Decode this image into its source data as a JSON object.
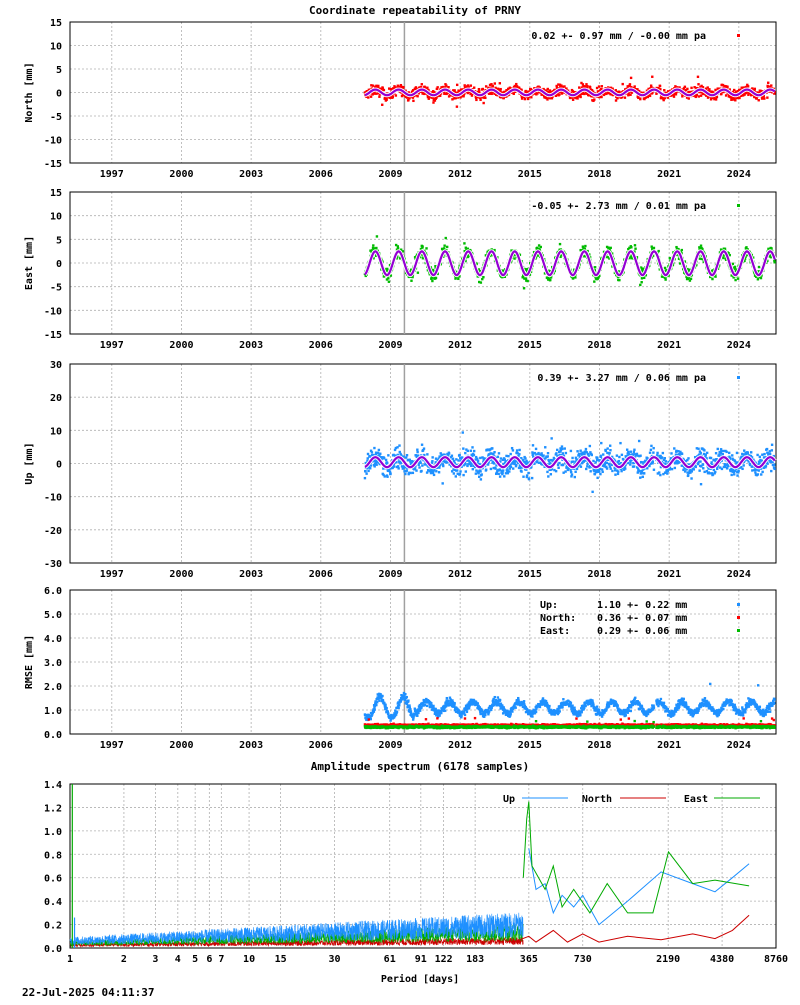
{
  "page": {
    "title": "Coordinate repeatability of PRNY",
    "footer_timestamp": "22-Jul-2025 04:11:37"
  },
  "colors": {
    "north": "#ff0000",
    "east": "#00bb00",
    "up": "#1e90ff",
    "model": "#9400d3",
    "grid": "#b0b0b0",
    "vline": "#a0a0a0",
    "spec_up": "#1e90ff",
    "spec_north": "#cc0000",
    "spec_east": "#00aa00"
  },
  "chart_data": [
    {
      "id": "north",
      "type": "scatter",
      "ylabel": "North [mm]",
      "ylim": [
        -15,
        15
      ],
      "yticks": [
        -15,
        -10,
        -5,
        0,
        5,
        10,
        15
      ],
      "xlim": [
        1995.2,
        2025.6
      ],
      "xticks": [
        1997,
        2000,
        2003,
        2006,
        2009,
        2012,
        2015,
        2018,
        2021,
        2024
      ],
      "annotation": "0.02 +- 0.97 mm / -0.00 mm pa",
      "data_range": [
        2007.9,
        2025.55
      ],
      "gap": [
        2020.35,
        2020.45
      ],
      "scatter_sigma": 0.97,
      "seasonal_amplitude": 0.6,
      "mean": 0.02,
      "vline_x": 2009.6
    },
    {
      "id": "east",
      "type": "scatter",
      "ylabel": "East [mm]",
      "ylim": [
        -15,
        15
      ],
      "yticks": [
        -15,
        -10,
        -5,
        0,
        5,
        10,
        15
      ],
      "xlim": [
        1995.2,
        2025.6
      ],
      "xticks": [
        1997,
        2000,
        2003,
        2006,
        2009,
        2012,
        2015,
        2018,
        2021,
        2024
      ],
      "annotation": "-0.05 +- 2.73 mm /  0.01 mm pa",
      "data_range": [
        2007.9,
        2025.55
      ],
      "gap": [
        2020.35,
        2020.45
      ],
      "scatter_sigma": 1.2,
      "seasonal_amplitude": 2.5,
      "mean": -0.05,
      "vline_x": 2009.6
    },
    {
      "id": "up",
      "type": "scatter",
      "ylabel": "Up [mm]",
      "ylim": [
        -30,
        30
      ],
      "yticks": [
        -30,
        -20,
        -10,
        0,
        10,
        20,
        30
      ],
      "xlim": [
        1995.2,
        2025.6
      ],
      "xticks": [
        1997,
        2000,
        2003,
        2006,
        2009,
        2012,
        2015,
        2018,
        2021,
        2024
      ],
      "annotation": "0.39 +- 3.27 mm /  0.06 mm pa",
      "data_range": [
        2007.9,
        2025.55
      ],
      "gap": [
        2020.35,
        2020.45
      ],
      "scatter_sigma": 3.0,
      "seasonal_amplitude": 1.5,
      "mean": 0.39,
      "vline_x": 2009.6
    },
    {
      "id": "rmse",
      "type": "scatter",
      "ylabel": "RMSE [mm]",
      "ylim": [
        0,
        6
      ],
      "yticks": [
        "0.0",
        "1.0",
        "2.0",
        "3.0",
        "4.0",
        "5.0",
        "6.0"
      ],
      "xlim": [
        1995.2,
        2025.6
      ],
      "xticks": [
        1997,
        2000,
        2003,
        2006,
        2009,
        2012,
        2015,
        2018,
        2021,
        2024
      ],
      "legend": [
        {
          "label": "Up:",
          "value": "1.10 +- 0.22 mm",
          "color_key": "up"
        },
        {
          "label": "North:",
          "value": "0.36 +- 0.07 mm",
          "color_key": "north"
        },
        {
          "label": "East:",
          "value": "0.29 +- 0.06 mm",
          "color_key": "east"
        }
      ],
      "series_means": {
        "up": 1.1,
        "north": 0.36,
        "east": 0.29
      },
      "series_sigmas": {
        "up": 0.22,
        "north": 0.07,
        "east": 0.06
      },
      "data_range": [
        2007.9,
        2025.55
      ],
      "gap": [
        2020.35,
        2020.45
      ],
      "vline_x": 2009.6
    },
    {
      "id": "spectrum",
      "type": "line",
      "title": "Amplitude spectrum (6178 samples)",
      "xlabel": "Period [days]",
      "xscale": "log",
      "xlim": [
        1,
        8760
      ],
      "ylim": [
        0,
        1.4
      ],
      "yticks": [
        "0.0",
        "0.2",
        "0.4",
        "0.6",
        "0.8",
        "1.0",
        "1.2",
        "1.4"
      ],
      "xticks": [
        1,
        2,
        3,
        4,
        5,
        6,
        7,
        10,
        15,
        30,
        61,
        91,
        122,
        183,
        365,
        730,
        2190,
        4380,
        8760
      ],
      "legend": [
        "Up",
        "North",
        "East"
      ],
      "series": [
        {
          "name": "Up",
          "points": [
            [
              365,
              0.85
            ],
            [
              400,
              0.5
            ],
            [
              450,
              0.55
            ],
            [
              500,
              0.3
            ],
            [
              560,
              0.45
            ],
            [
              650,
              0.35
            ],
            [
              730,
              0.45
            ],
            [
              900,
              0.2
            ],
            [
              1300,
              0.4
            ],
            [
              2000,
              0.65
            ],
            [
              3000,
              0.55
            ],
            [
              4000,
              0.48
            ],
            [
              5000,
              0.6
            ],
            [
              6200,
              0.72
            ]
          ]
        },
        {
          "name": "North",
          "points": [
            [
              300,
              0.05
            ],
            [
              365,
              0.1
            ],
            [
              400,
              0.05
            ],
            [
              500,
              0.15
            ],
            [
              600,
              0.05
            ],
            [
              730,
              0.12
            ],
            [
              900,
              0.05
            ],
            [
              1300,
              0.1
            ],
            [
              2000,
              0.07
            ],
            [
              3000,
              0.12
            ],
            [
              4000,
              0.08
            ],
            [
              5000,
              0.15
            ],
            [
              6200,
              0.28
            ]
          ]
        },
        {
          "name": "East",
          "points": [
            [
              340,
              0.6
            ],
            [
              355,
              1.1
            ],
            [
              365,
              1.25
            ],
            [
              380,
              0.7
            ],
            [
              450,
              0.5
            ],
            [
              500,
              0.7
            ],
            [
              560,
              0.35
            ],
            [
              650,
              0.5
            ],
            [
              800,
              0.3
            ],
            [
              1000,
              0.55
            ],
            [
              1300,
              0.3
            ],
            [
              1800,
              0.3
            ],
            [
              2200,
              0.82
            ],
            [
              3000,
              0.55
            ],
            [
              4000,
              0.58
            ],
            [
              6200,
              0.53
            ]
          ]
        }
      ]
    }
  ]
}
